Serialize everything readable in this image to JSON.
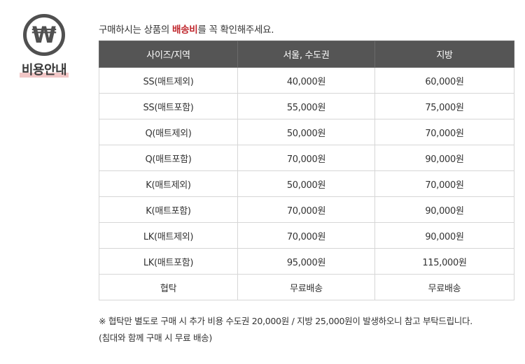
{
  "badge": {
    "icon_glyph": "₩",
    "icon_name": "won-icon",
    "label": "비용안내"
  },
  "intro": {
    "before": "구매하시는 상품의 ",
    "highlight": "배송비",
    "after": "를 꼭 확인해주세요."
  },
  "table": {
    "headers": [
      "사이즈/지역",
      "서울, 수도권",
      "지방"
    ],
    "rows": [
      [
        "SS(매트제외)",
        "40,000원",
        "60,000원"
      ],
      [
        "SS(매트포함)",
        "55,000원",
        "75,000원"
      ],
      [
        "Q(매트제외)",
        "50,000원",
        "70,000원"
      ],
      [
        "Q(매트포함)",
        "70,000원",
        "90,000원"
      ],
      [
        "K(매트제외)",
        "50,000원",
        "70,000원"
      ],
      [
        "K(매트포함)",
        "70,000원",
        "90,000원"
      ],
      [
        "LK(매트제외)",
        "70,000원",
        "90,000원"
      ],
      [
        "LK(매트포함)",
        "95,000원",
        "115,000원"
      ],
      [
        "협탁",
        "무료배송",
        "무료배송"
      ]
    ]
  },
  "notes": [
    "※ 협탁만 별도로 구매 시 추가 비용 수도권 20,000원 / 지방 25,000원이  발생하오니 참고 부탁드립니다.",
    "(침대와 함께 구매 시 무료 배송)"
  ],
  "colors": {
    "accent": "#c0272d",
    "header_bg": "#555555",
    "badge_underline": "#f2c7c7"
  }
}
